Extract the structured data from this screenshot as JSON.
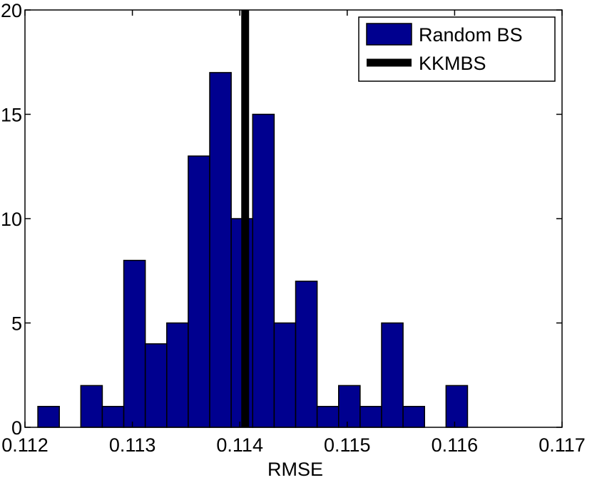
{
  "chart_data": {
    "type": "bar",
    "xlabel": "RMSE",
    "ylabel": "",
    "xlim": [
      0.112,
      0.117
    ],
    "ylim": [
      0,
      20
    ],
    "xticks": [
      "0.112",
      "0.113",
      "0.114",
      "0.115",
      "0.116",
      "0.117"
    ],
    "yticks": [
      "0",
      "5",
      "10",
      "15",
      "20"
    ],
    "grid": false,
    "legend_position": "top-right",
    "series": [
      {
        "name": "Random BS",
        "color": "#00008F",
        "bin_width": 0.0002,
        "bin_centers": [
          0.11222,
          0.11242,
          0.11262,
          0.11282,
          0.11302,
          0.11322,
          0.11342,
          0.11362,
          0.11382,
          0.11402,
          0.11422,
          0.11442,
          0.11462,
          0.11482,
          0.11502,
          0.11522,
          0.11542,
          0.11562,
          0.11582,
          0.11602
        ],
        "values": [
          1,
          0,
          2,
          1,
          8,
          4,
          5,
          13,
          17,
          10,
          15,
          5,
          7,
          1,
          2,
          1,
          5,
          1,
          0,
          2
        ]
      },
      {
        "name": "KKMBS",
        "color": "#000000",
        "type": "vline",
        "x": 0.11405
      }
    ]
  }
}
